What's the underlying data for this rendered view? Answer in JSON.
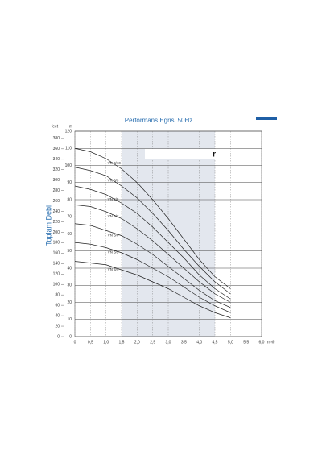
{
  "chart_data": {
    "type": "line",
    "title": "Performans Egrisi 50Hz",
    "y_axis_label": "Toplam Debi",
    "y_unit": "m",
    "y2_unit": "feet",
    "x_unit": "m³/h",
    "watermark": "r",
    "x": [
      0,
      0.5,
      1.0,
      1.5,
      2.0,
      2.5,
      3.0,
      3.5,
      4.0,
      4.5,
      5.0
    ],
    "xlim": [
      0,
      6.0
    ],
    "xticks": [
      {
        "value": 0,
        "label": "0"
      },
      {
        "value": 0.5,
        "label": "0,5"
      },
      {
        "value": 1.0,
        "label": "1,0"
      },
      {
        "value": 1.5,
        "label": "1,5"
      },
      {
        "value": 2.0,
        "label": "2,0"
      },
      {
        "value": 2.5,
        "label": "2,5"
      },
      {
        "value": 3.0,
        "label": "3,0"
      },
      {
        "value": 3.5,
        "label": "3,5"
      },
      {
        "value": 4.0,
        "label": "4,0"
      },
      {
        "value": 4.5,
        "label": "4,5"
      },
      {
        "value": 5.0,
        "label": "5,0"
      },
      {
        "value": 5.5,
        "label": "5,5"
      },
      {
        "value": 6.0,
        "label": "6,0"
      }
    ],
    "ylim": [
      0,
      120
    ],
    "yticks": [
      0,
      10,
      20,
      30,
      40,
      50,
      60,
      70,
      80,
      90,
      100,
      110,
      120
    ],
    "y2lim": [
      0,
      393.7
    ],
    "y2ticks": [
      0,
      20,
      40,
      60,
      80,
      100,
      120,
      140,
      160,
      180,
      200,
      220,
      240,
      260,
      280,
      300,
      320,
      340,
      360,
      380
    ],
    "shaded_ranges": [
      [
        1.5,
        4.5
      ]
    ],
    "grid": true,
    "series": [
      {
        "name": "VN 3/10",
        "color": "#222",
        "values": [
          110,
          108,
          104,
          98,
          90,
          80,
          69,
          57,
          45,
          35,
          28
        ]
      },
      {
        "name": "VN 3/9",
        "color": "#222",
        "values": [
          99,
          97,
          94,
          88,
          81,
          72,
          62,
          51,
          41,
          32,
          25
        ]
      },
      {
        "name": "VN 3/8",
        "color": "#222",
        "values": [
          88,
          86,
          83,
          78,
          72,
          64,
          55,
          46,
          36,
          28,
          22
        ]
      },
      {
        "name": "VN 3/7",
        "color": "#222",
        "values": [
          77,
          76,
          73,
          69,
          63,
          56,
          48,
          40,
          32,
          25,
          20
        ]
      },
      {
        "name": "VN 3/6",
        "color": "#222",
        "values": [
          66,
          65,
          62,
          59,
          54,
          48,
          41,
          34,
          27,
          21,
          17
        ]
      },
      {
        "name": "VN 3/5",
        "color": "#222",
        "values": [
          55,
          54,
          52,
          49,
          45,
          40,
          35,
          29,
          23,
          18,
          14
        ]
      },
      {
        "name": "VN 3/4",
        "color": "#222",
        "values": [
          44,
          43,
          42,
          39,
          36,
          32,
          28,
          23,
          18,
          14,
          11
        ]
      }
    ]
  }
}
